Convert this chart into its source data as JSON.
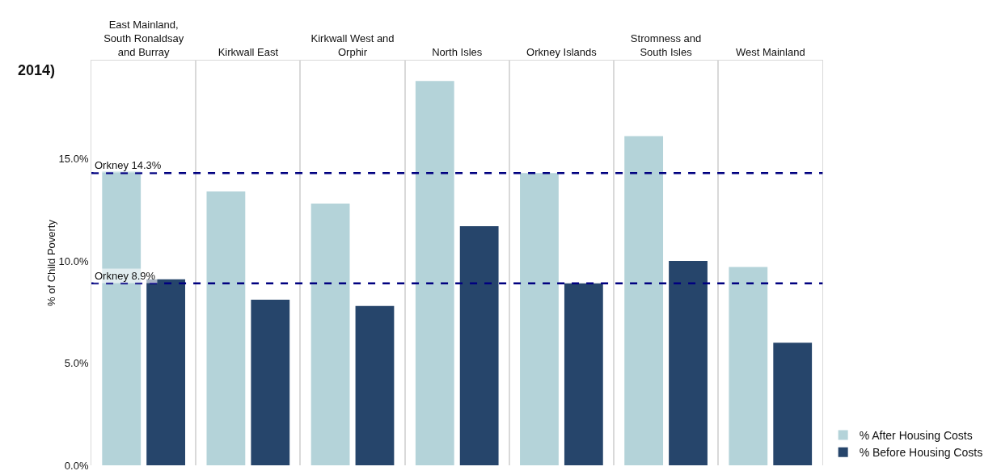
{
  "chart_data": {
    "type": "bar",
    "title": "2014)",
    "ylabel": "% of Child Poverty",
    "categories": [
      "East Mainland, South Ronaldsay and Burray",
      "Kirkwall East",
      "Kirkwall West and Orphir",
      "North Isles",
      "Orkney Islands",
      "Stromness and South Isles",
      "West Mainland"
    ],
    "series": [
      {
        "name": "% After Housing Costs",
        "color": "#b4d3d9",
        "values": [
          14.4,
          13.4,
          12.8,
          18.8,
          14.3,
          16.1,
          9.7
        ]
      },
      {
        "name": "% Before Housing Costs",
        "color": "#26456b",
        "values": [
          9.1,
          8.1,
          7.8,
          11.7,
          8.9,
          10.0,
          6.0
        ]
      }
    ],
    "ylim": [
      0,
      19.8
    ],
    "yticks": [
      {
        "value": 0,
        "label": "0.0%"
      },
      {
        "value": 5,
        "label": "5.0%"
      },
      {
        "value": 10,
        "label": "10.0%"
      },
      {
        "value": 15,
        "label": "15.0%"
      }
    ],
    "ref_lines": [
      {
        "axis": "y",
        "value": 14.3,
        "label": "Orkney 14.3%",
        "color": "#000080",
        "line_style": "dashed"
      },
      {
        "axis": "y",
        "value": 8.9,
        "label": "Orkney 8.9%",
        "color": "#000080",
        "line_style": "dashed"
      }
    ],
    "legend": "bottom right",
    "grid": false
  }
}
